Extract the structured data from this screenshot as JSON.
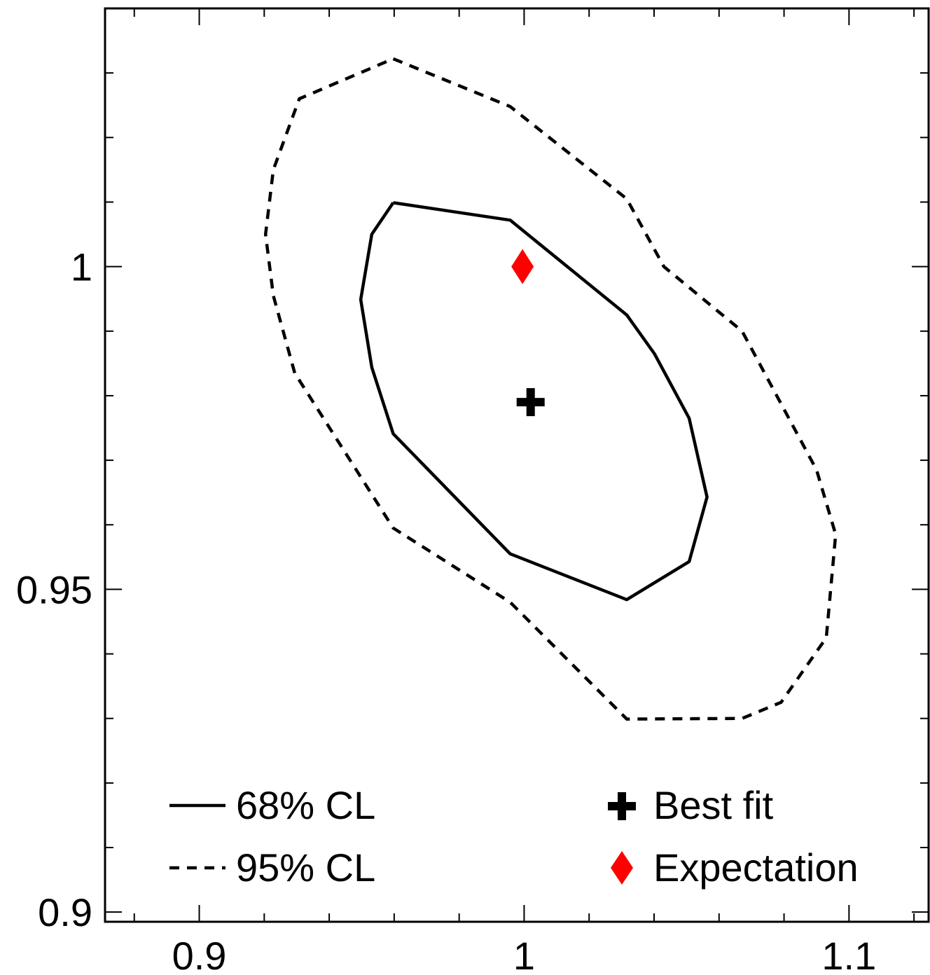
{
  "chart_data": {
    "type": "contour",
    "title": "",
    "xlabel": "",
    "ylabel": "",
    "xlim": [
      0.871,
      1.1245
    ],
    "ylim": [
      0.8985,
      1.04
    ],
    "grid": false,
    "x_ticks": [
      {
        "value": 0.9,
        "label": "0.9"
      },
      {
        "value": 1.0,
        "label": "1"
      },
      {
        "value": 1.1,
        "label": "1.1"
      }
    ],
    "y_ticks": [
      {
        "value": 0.9,
        "label": "0.9"
      },
      {
        "value": 0.95,
        "label": "0.95"
      },
      {
        "value": 1.0,
        "label": "1"
      }
    ],
    "x_minor_step": 0.02,
    "y_minor_step": 0.01,
    "legend_position": "bottom",
    "series": [
      {
        "name": "68% CL",
        "style": "solid",
        "color": "#000000",
        "points": [
          [
            0.9597,
            1.0099
          ],
          [
            0.9957,
            1.0072
          ],
          [
            1.0316,
            0.9925
          ],
          [
            1.0401,
            0.9865
          ],
          [
            1.0508,
            0.9765
          ],
          [
            1.0563,
            0.9643
          ],
          [
            1.0508,
            0.9543
          ],
          [
            1.0316,
            0.9484
          ],
          [
            0.9957,
            0.9555
          ],
          [
            0.9597,
            0.9741
          ],
          [
            0.9531,
            0.9844
          ],
          [
            0.9497,
            0.9949
          ],
          [
            0.9531,
            1.005
          ],
          [
            0.9597,
            1.0099
          ]
        ]
      },
      {
        "name": "95% CL",
        "style": "dashed",
        "color": "#000000",
        "points": [
          [
            0.9597,
            1.0322
          ],
          [
            0.9957,
            1.0248
          ],
          [
            1.0316,
            1.0105
          ],
          [
            1.043,
            1.0
          ],
          [
            1.0671,
            0.99
          ],
          [
            1.09,
            0.9685
          ],
          [
            1.0959,
            0.9585
          ],
          [
            1.093,
            0.9425
          ],
          [
            1.0791,
            0.9325
          ],
          [
            1.0671,
            0.93
          ],
          [
            1.0316,
            0.9299
          ],
          [
            0.9957,
            0.948
          ],
          [
            0.9597,
            0.9595
          ],
          [
            0.9294,
            0.9835
          ],
          [
            0.9228,
            0.9955
          ],
          [
            0.9204,
            1.005
          ],
          [
            0.9228,
            1.015
          ],
          [
            0.9308,
            1.026
          ],
          [
            0.9597,
            1.0322
          ]
        ]
      }
    ],
    "markers": [
      {
        "name": "Best fit",
        "symbol": "cross",
        "color": "#000000",
        "x": 1.002,
        "y": 0.979
      },
      {
        "name": "Expectation",
        "symbol": "diamond",
        "color": "#ff0000",
        "x": 0.9995,
        "y": 1.0
      }
    ]
  }
}
